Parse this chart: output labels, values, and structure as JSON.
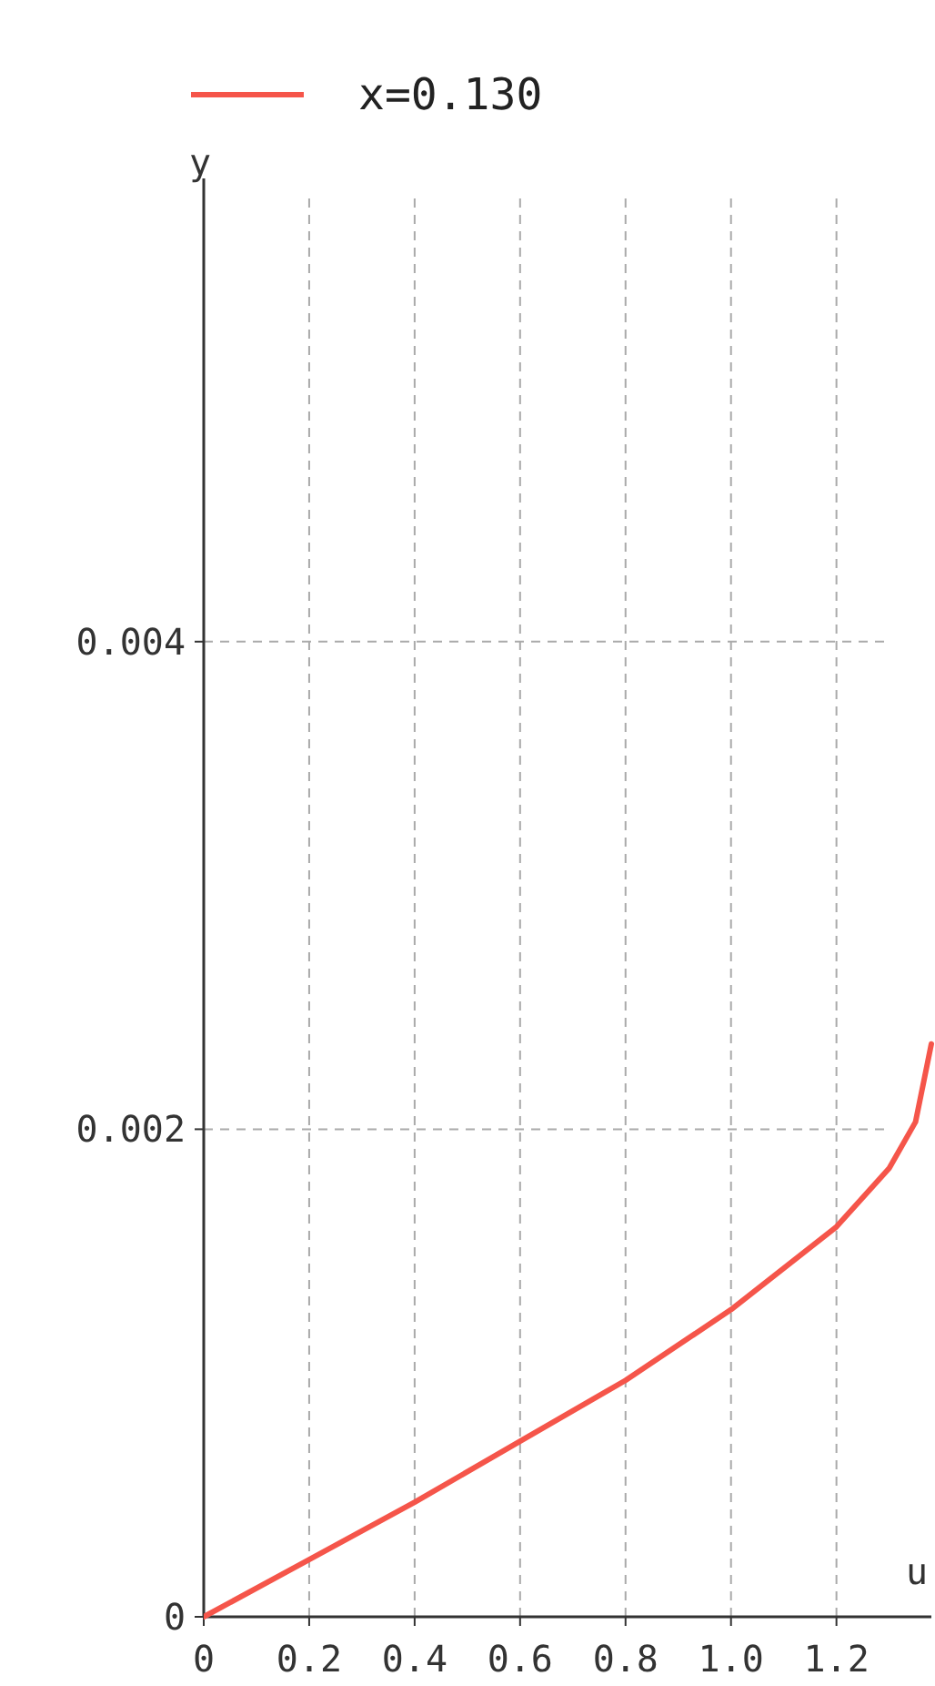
{
  "chart_data": {
    "type": "line",
    "xlabel": "u",
    "ylabel": "y",
    "series": [
      {
        "name": "x=0.130",
        "color": "#f5554a",
        "x": [
          0,
          0.2,
          0.4,
          0.6,
          0.8,
          1.0,
          1.2,
          1.3,
          1.35,
          1.38
        ],
        "values": [
          0,
          0.000235,
          0.00047,
          0.00072,
          0.00097,
          0.00126,
          0.0016,
          0.00184,
          0.00203,
          0.00235
        ]
      }
    ],
    "xlim": [
      0,
      1.38
    ],
    "ylim": [
      0,
      0.0059
    ],
    "xticks": [
      0,
      0.2,
      0.4,
      0.6,
      0.8,
      {
        "value": 1,
        "label": "1.0"
      },
      1.2
    ],
    "yticks": [
      0,
      0.002,
      0.004
    ],
    "grid": true,
    "legend": "top left",
    "marker": "none",
    "line_style": "solid"
  }
}
